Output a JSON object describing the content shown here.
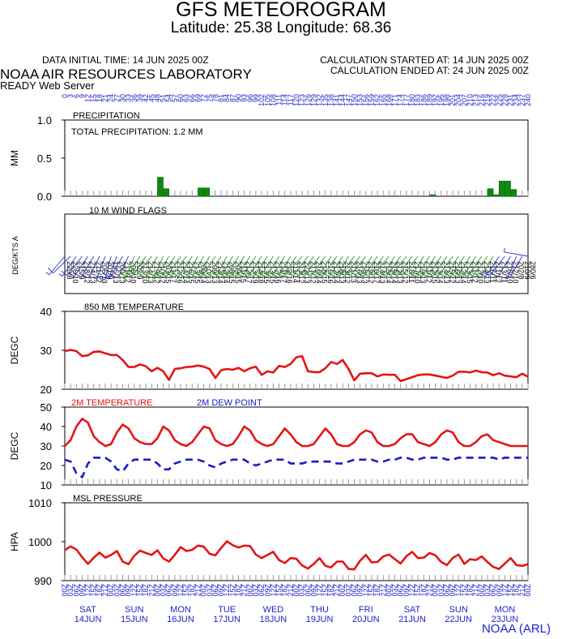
{
  "header": {
    "title": "GFS METEOROGRAM",
    "subtitle": "Latitude: 25.38 Longitude:  68.36",
    "data_initial_time": "DATA INITIAL TIME: 14 JUN 2025 00Z",
    "calc_started": "CALCULATION STARTED AT: 14 JUN 2025 00Z",
    "calc_ended": "CALCULATION ENDED AT: 24 JUN 2025 00Z",
    "lab": "NOAA AIR RESOURCES LABORATORY",
    "server": "READY Web Server",
    "credit": "NOAA (ARL)"
  },
  "colors": {
    "temperature": "#e51414",
    "dewpoint": "#1a1acc",
    "precip": "#0f8a0f",
    "wind": "#2a9a2a",
    "wind_alt": "#3333cc",
    "axis_text": "#2222cc"
  },
  "chart_data": [
    {
      "type": "bar",
      "title": "PRECIPITATION",
      "annotation": "TOTAL PRECIPITATION:   1.2 MM",
      "ylabel": "MM",
      "ylim": [
        0,
        1
      ],
      "yticks": [
        "1.0",
        "0.5",
        "0.0"
      ],
      "x_hours_step": 3,
      "bars": [
        {
          "hour": 48,
          "value": 0.25
        },
        {
          "hour": 51,
          "value": 0.1
        },
        {
          "hour": 69,
          "value": 0.11
        },
        {
          "hour": 72,
          "value": 0.11
        },
        {
          "hour": 189,
          "value": 0.02
        },
        {
          "hour": 219,
          "value": 0.1
        },
        {
          "hour": 222,
          "value": 0.02
        },
        {
          "hour": 225,
          "value": 0.2
        },
        {
          "hour": 228,
          "value": 0.2
        },
        {
          "hour": 231,
          "value": 0.09
        }
      ],
      "top_labels": [
        "0",
        "3",
        "6",
        "9",
        "12",
        "15",
        "18",
        "21",
        "24",
        "27",
        "30",
        "33",
        "36",
        "39",
        "42",
        "45",
        "48",
        "51",
        "54",
        "57",
        "60",
        "63",
        "66",
        "69",
        "72",
        "75",
        "78",
        "81",
        "84",
        "87",
        "90",
        "93",
        "96",
        "99",
        "102",
        "105",
        "108",
        "111",
        "114",
        "117",
        "120",
        "123",
        "126",
        "129",
        "132",
        "135",
        "138",
        "141",
        "144",
        "147",
        "150",
        "153",
        "156",
        "159",
        "162",
        "165",
        "168",
        "171",
        "174",
        "177",
        "180",
        "183",
        "186",
        "189",
        "192",
        "195",
        "198",
        "201",
        "204",
        "207",
        "210",
        "213",
        "216",
        "219",
        "222",
        "225",
        "228",
        "231",
        "234",
        "237",
        "240"
      ]
    },
    {
      "type": "wind_flags",
      "title": "10 M  WIND FLAGS",
      "ylabel": "DEG/KTS  A",
      "labels": [
        "220/8",
        "226/10",
        "215/9",
        "218/12",
        "214/13",
        "211/12",
        "206/13",
        "201/9",
        "195/13",
        "200/13",
        "211/12",
        "206/10",
        "202/9",
        "213/10",
        "214/13",
        "219/12",
        "210/12",
        "203/15",
        "211/17",
        "212/16",
        "214/14",
        "216/15",
        "213/15",
        "209/14",
        "210/13",
        "209/13",
        "213/14",
        "212/14",
        "208/15",
        "209/15",
        "211/15",
        "212/17",
        "213/19",
        "214/18",
        "213/15",
        "213/15",
        "212/16",
        "211/17",
        "212/16",
        "211/14",
        "213/12",
        "222/13",
        "217/12",
        "216/14",
        "218/15",
        "216/16",
        "212/14",
        "216/13",
        "213/12",
        "211/13",
        "216/13",
        "218/13",
        "219/12",
        "210/17",
        "214/13",
        "215/14",
        "219/14",
        "212/13",
        "215/12",
        "218/11",
        "217/10",
        "219/13",
        "211/12",
        "212/15",
        "213/14",
        "214/13",
        "215/12",
        "216/13",
        "212/14",
        "213/15",
        "211/12",
        "212/10",
        "214/13",
        "216/11",
        "211/12",
        "213/11",
        "218/10",
        "212/10",
        "202/8",
        "210/9",
        "280/6"
      ]
    },
    {
      "type": "line",
      "title": "850 MB  TEMPERATURE",
      "ylabel": "DEGC",
      "ylim": [
        20,
        40
      ],
      "yticks": [
        "40",
        "30",
        "20"
      ],
      "series": [
        {
          "values": [
            29.8,
            30.1,
            29.8,
            28.5,
            28.7,
            29.6,
            29.7,
            29.2,
            28.8,
            28.8,
            27.5,
            25.7,
            25.7,
            26.4,
            25.9,
            24.6,
            25.5,
            24.6,
            22.4,
            25.2,
            25.4,
            25.7,
            25.8,
            26.1,
            25.8,
            25.2,
            22.9,
            24.9,
            25.2,
            25.0,
            25.5,
            24.6,
            25.4,
            25.8,
            23.7,
            24.6,
            24.3,
            26.0,
            25.7,
            26.5,
            28.2,
            28.5,
            24.6,
            24.4,
            24.4,
            25.4,
            27.0,
            26.5,
            27.5,
            25.2,
            22.3,
            24.0,
            24.1,
            24.1,
            23.3,
            23.8,
            23.7,
            23.7,
            22.1,
            22.6,
            23.1,
            23.6,
            23.8,
            23.8,
            23.5,
            23.2,
            22.9,
            23.5,
            24.5,
            24.5,
            24.3,
            24.8,
            24.4,
            24.3,
            23.6,
            24.1,
            23.5,
            23.3,
            23.1,
            24.0,
            23.2
          ]
        }
      ]
    },
    {
      "type": "line",
      "title": "",
      "ylabel": "DEGC",
      "ylim": [
        10,
        50
      ],
      "yticks": [
        "50",
        "40",
        "30",
        "20",
        "10"
      ],
      "series": [
        {
          "name": "2M TEMPERATURE",
          "values": [
            30,
            33,
            40,
            44,
            42,
            35,
            32,
            30,
            31,
            37,
            41,
            39,
            34,
            32,
            31,
            31,
            34,
            40,
            38,
            33,
            31,
            30,
            32,
            36,
            40,
            39,
            33,
            31,
            30,
            31,
            35,
            40,
            38,
            33,
            31,
            30,
            31,
            35,
            39,
            36,
            32,
            30,
            30,
            31,
            35,
            39,
            36,
            31,
            30,
            30,
            32,
            36,
            38,
            37,
            32,
            30,
            30,
            31,
            34,
            36,
            36,
            32,
            31,
            30,
            32,
            36,
            38,
            37,
            32,
            30,
            30,
            32,
            35,
            36,
            33,
            32,
            31,
            30,
            30,
            30,
            30
          ]
        },
        {
          "name": "2M  DEW POINT",
          "values": [
            23,
            22,
            16,
            14,
            21,
            24,
            24,
            24,
            22,
            18,
            17,
            21,
            23,
            23,
            23,
            23,
            21,
            18,
            18,
            21,
            22,
            23,
            23,
            23,
            22,
            20,
            19,
            21,
            22,
            23,
            23,
            23,
            21,
            20,
            21,
            22,
            23,
            23,
            23,
            21,
            21,
            21,
            22,
            22,
            22,
            22,
            22,
            21,
            21,
            22,
            23,
            23,
            23,
            23,
            22,
            22,
            23,
            23,
            24,
            24,
            23,
            23,
            24,
            24,
            24,
            24,
            23,
            23,
            24,
            24,
            24,
            24,
            24,
            24,
            24,
            23,
            24,
            24,
            24,
            24,
            24
          ]
        }
      ]
    },
    {
      "type": "line",
      "title": "MSL PRESSURE",
      "ylabel": "HPA",
      "ylim": [
        990,
        1010
      ],
      "yticks": [
        "1010",
        "1000",
        "990"
      ],
      "series": [
        {
          "values": [
            997.8,
            998.8,
            998.0,
            996.0,
            994.3,
            995.9,
            997.2,
            995.9,
            996.6,
            997.6,
            994.9,
            994.2,
            996.4,
            997.7,
            997.1,
            996.6,
            997.8,
            995.7,
            994.9,
            996.6,
            998.6,
            997.6,
            997.9,
            999.0,
            998.7,
            996.9,
            996.5,
            998.4,
            1000.1,
            999.1,
            998.5,
            999.0,
            998.9,
            996.7,
            995.8,
            996.6,
            997.4,
            995.3,
            994.5,
            995.8,
            995.6,
            993.9,
            993.1,
            994.3,
            995.8,
            993.8,
            993.4,
            994.9,
            994.9,
            993.0,
            992.9,
            995.1,
            996.6,
            994.7,
            994.8,
            996.2,
            996.7,
            995.5,
            994.4,
            996.3,
            997.4,
            995.8,
            995.9,
            997.1,
            996.5,
            994.8,
            994.0,
            995.8,
            996.7,
            994.3,
            995.5,
            995.3,
            996.2,
            994.8,
            993.5,
            993.0,
            994.4,
            995.8,
            994.0,
            993.8,
            994.2
          ]
        }
      ]
    }
  ],
  "time_axis": {
    "hour_labels": [
      "00Z",
      "03Z",
      "06Z",
      "09Z",
      "12Z",
      "15Z",
      "18Z",
      "21Z"
    ],
    "days": [
      {
        "dow": "SAT",
        "date": "14JUN"
      },
      {
        "dow": "SUN",
        "date": "15JUN"
      },
      {
        "dow": "MON",
        "date": "16JUN"
      },
      {
        "dow": "TUE",
        "date": "17JUN"
      },
      {
        "dow": "WED",
        "date": "18JUN"
      },
      {
        "dow": "THU",
        "date": "19JUN"
      },
      {
        "dow": "FRI",
        "date": "20JUN"
      },
      {
        "dow": "SAT",
        "date": "21JUN"
      },
      {
        "dow": "SUN",
        "date": "22JUN"
      },
      {
        "dow": "MON",
        "date": "23JUN"
      }
    ]
  }
}
